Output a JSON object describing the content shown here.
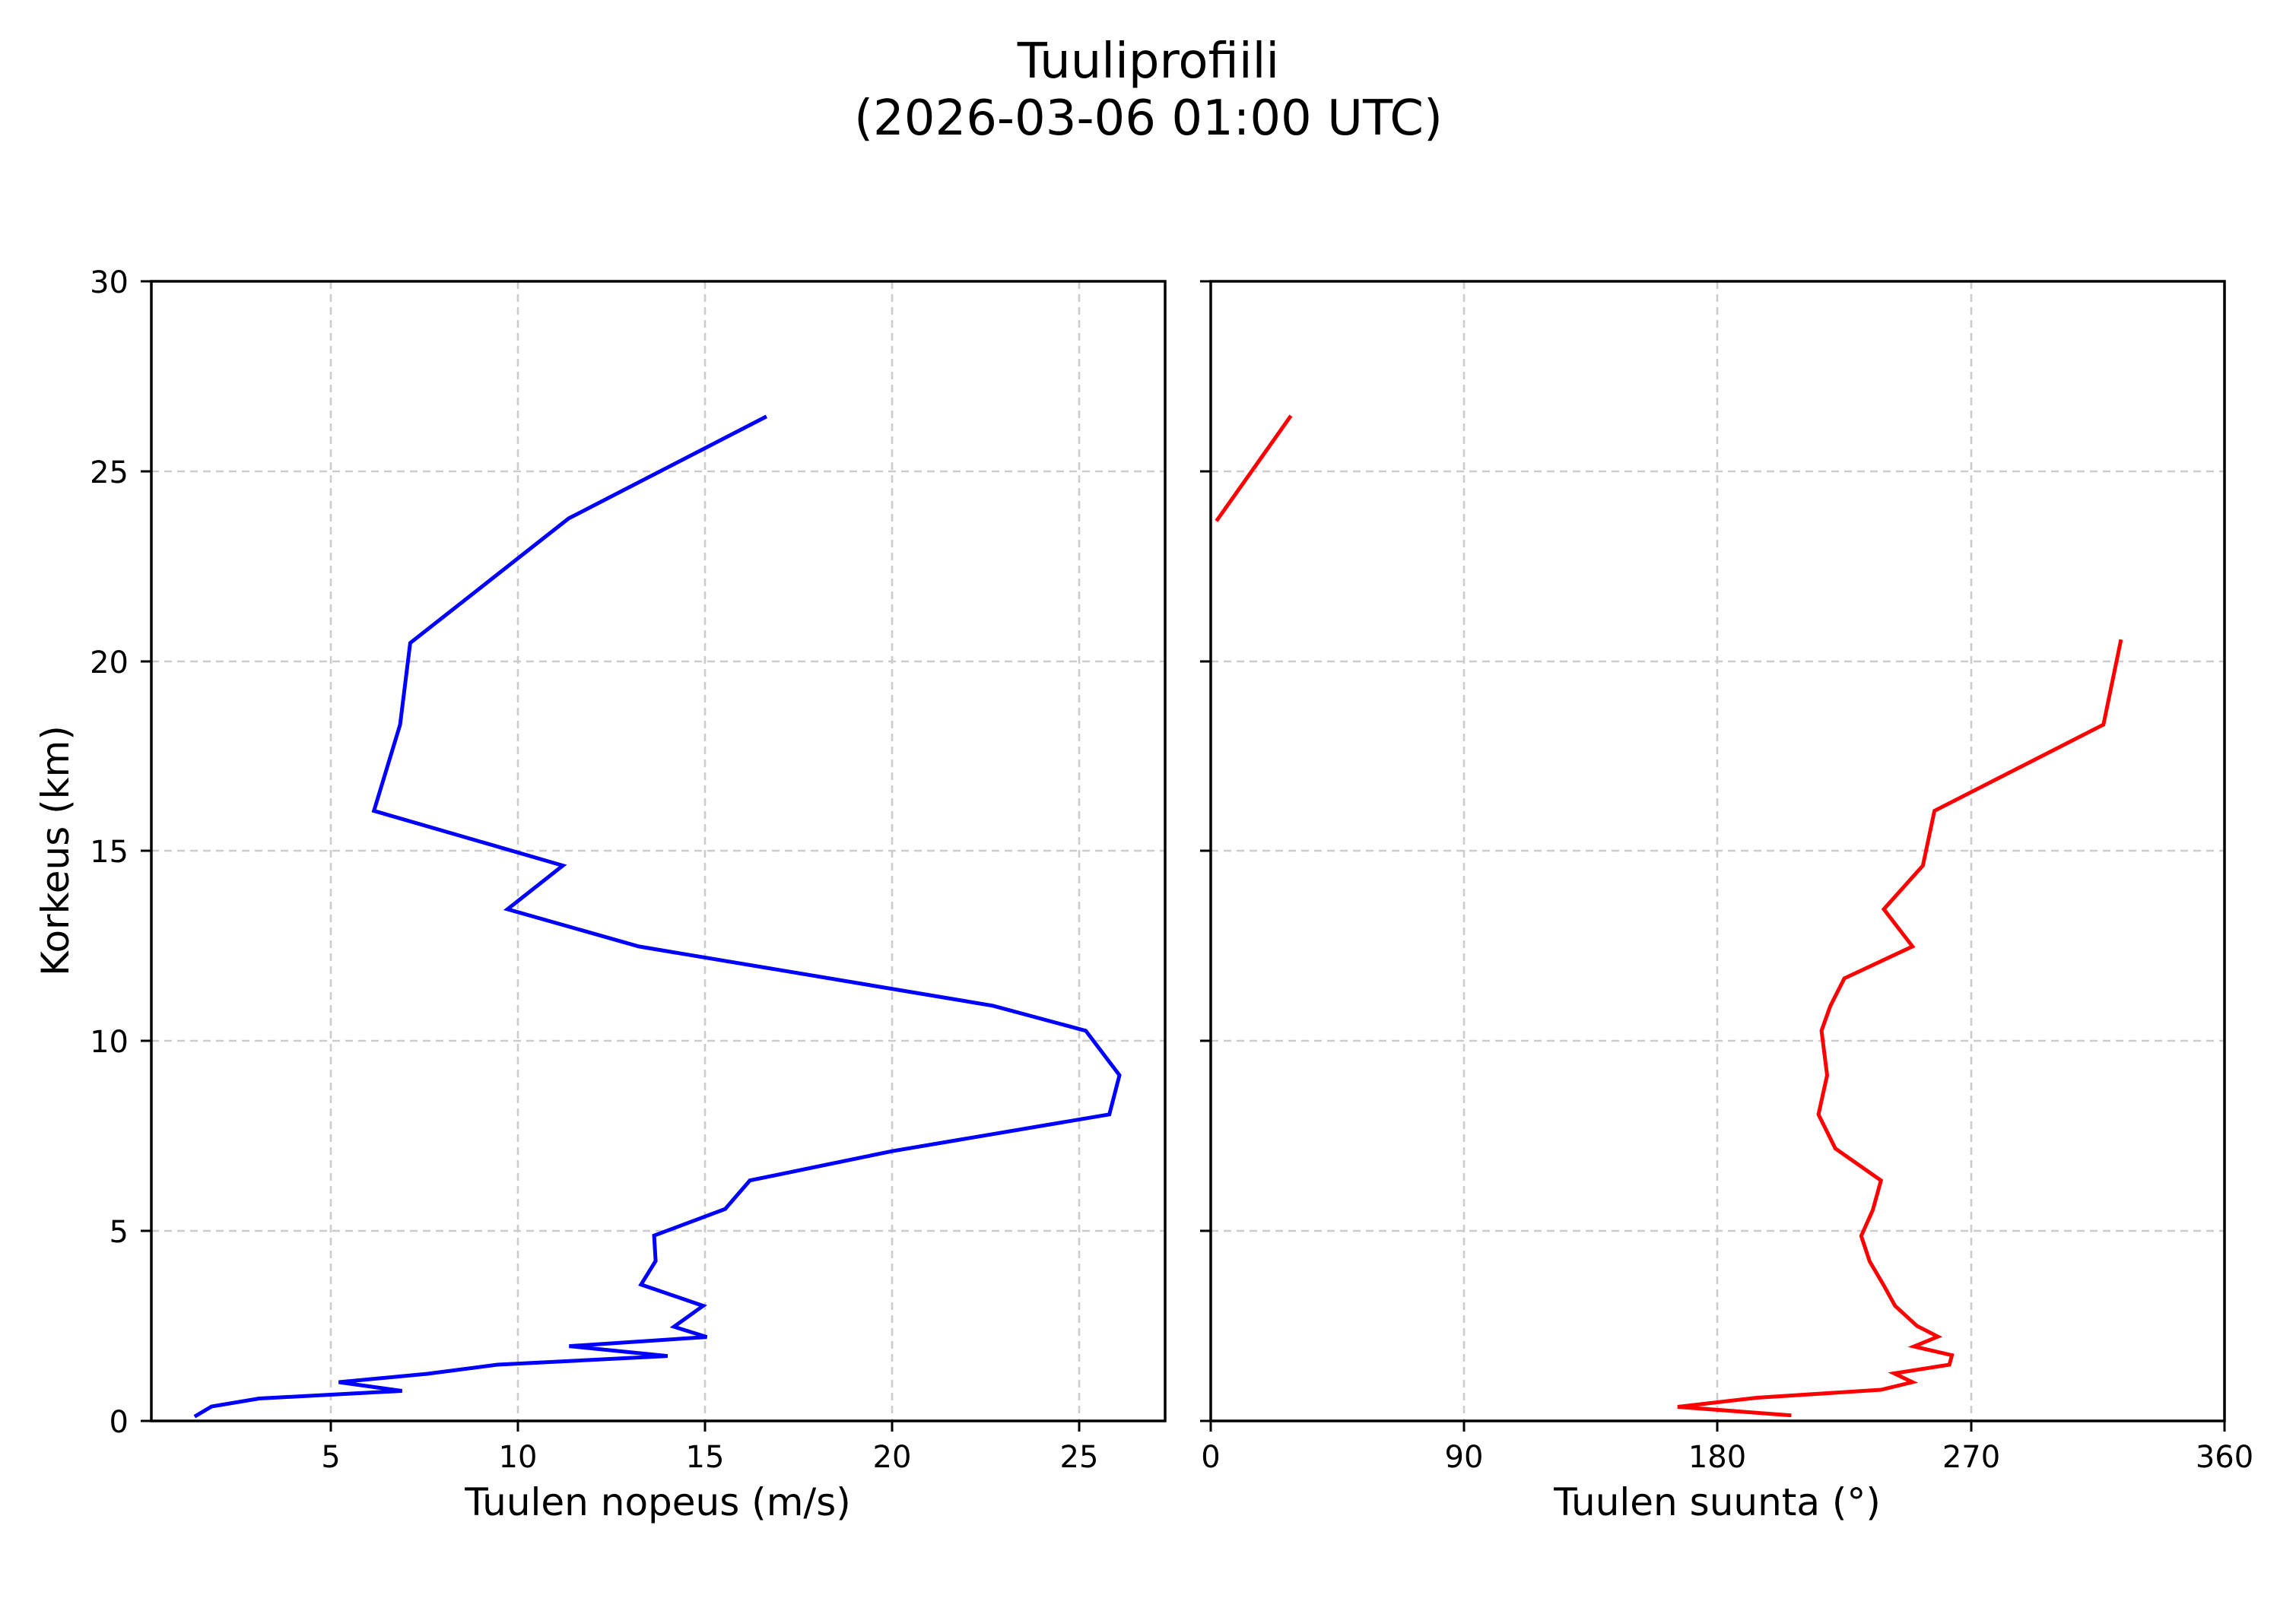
{
  "figure": {
    "title_line1": "Tuuliprofiili",
    "title_line2": "(2026-03-06 01:00 UTC)"
  },
  "left_panel": {
    "xlabel": "Tuulen nopeus (m/s)",
    "ylabel": "Korkeus (km)",
    "xticks": [
      "5",
      "10",
      "15",
      "20",
      "25"
    ],
    "yticks": [
      "0",
      "5",
      "10",
      "15",
      "20",
      "25",
      "30"
    ],
    "line_color": "#0000ff"
  },
  "right_panel": {
    "xlabel": "Tuulen suunta (°)",
    "xticks": [
      "0",
      "90",
      "180",
      "270",
      "360"
    ],
    "line_color": "#ff0000"
  },
  "chart_data": [
    {
      "type": "line",
      "title": "Tuuliprofiili (2026-03-06 01:00 UTC)",
      "xlabel": "Tuulen nopeus (m/s)",
      "ylabel": "Korkeus (km)",
      "xlim": [
        0.2,
        27.3
      ],
      "ylim": [
        0,
        30
      ],
      "xticks": [
        5,
        10,
        15,
        20,
        25
      ],
      "yticks": [
        0,
        5,
        10,
        15,
        20,
        25,
        30
      ],
      "grid": true,
      "grid_style": "dashed",
      "series": [
        {
          "name": "Tuulen nopeus",
          "color": "#0000ff",
          "x": [
            1.4,
            1.81,
            3.08,
            6.9,
            5.21,
            7.58,
            9.45,
            14.0,
            11.37,
            15.05,
            14.17,
            14.95,
            13.29,
            13.68,
            13.64,
            15.54,
            16.2,
            20.0,
            25.81,
            26.08,
            25.18,
            22.7,
            13.23,
            9.72,
            11.2,
            6.15,
            6.85,
            7.12,
            11.36,
            16.6
          ],
          "y": [
            0.14,
            0.38,
            0.59,
            0.79,
            1.02,
            1.24,
            1.48,
            1.71,
            1.97,
            2.21,
            2.48,
            3.03,
            3.59,
            4.21,
            4.88,
            5.58,
            6.33,
            7.1,
            8.07,
            9.1,
            10.27,
            10.93,
            12.49,
            13.47,
            14.62,
            16.06,
            18.33,
            20.48,
            23.76,
            26.42
          ]
        }
      ]
    },
    {
      "type": "line",
      "title": "Tuuliprofiili (2026-03-06 01:00 UTC)",
      "xlabel": "Tuulen suunta (°)",
      "ylabel": "Korkeus (km)",
      "xlim": [
        0,
        360
      ],
      "ylim": [
        0,
        30
      ],
      "xticks": [
        0,
        90,
        180,
        270,
        360
      ],
      "yticks": [
        0,
        5,
        10,
        15,
        20,
        25,
        30
      ],
      "grid": true,
      "grid_style": "dashed",
      "series": [
        {
          "name": "Tuulen suunta",
          "color": "#ff0000",
          "segments": [
            {
              "x": [
                205.5,
                165.8,
                193.9,
                238.0,
                249.2,
                242.7,
                262.3,
                263.2,
                249.7,
                258.2,
                250.8,
                243.0,
                238.9,
                234.0,
                231.0,
                235.1,
                238.0,
                221.8,
                215.8,
                218.9,
                216.9,
                220.0,
                225.0,
                249.2,
                239.0,
                252.9,
                257.0,
                317.0,
                323.1
              ],
              "y": [
                0.15,
                0.37,
                0.61,
                0.82,
                1.02,
                1.25,
                1.48,
                1.73,
                1.96,
                2.22,
                2.5,
                3.03,
                3.58,
                4.2,
                4.87,
                5.55,
                6.33,
                7.17,
                8.07,
                9.1,
                10.27,
                10.92,
                11.65,
                12.49,
                13.47,
                14.62,
                16.06,
                18.33,
                20.52
              ]
            },
            {
              "x": [
                2.4,
                28.1
              ],
              "y": [
                23.73,
                26.42
              ]
            }
          ]
        }
      ]
    }
  ]
}
